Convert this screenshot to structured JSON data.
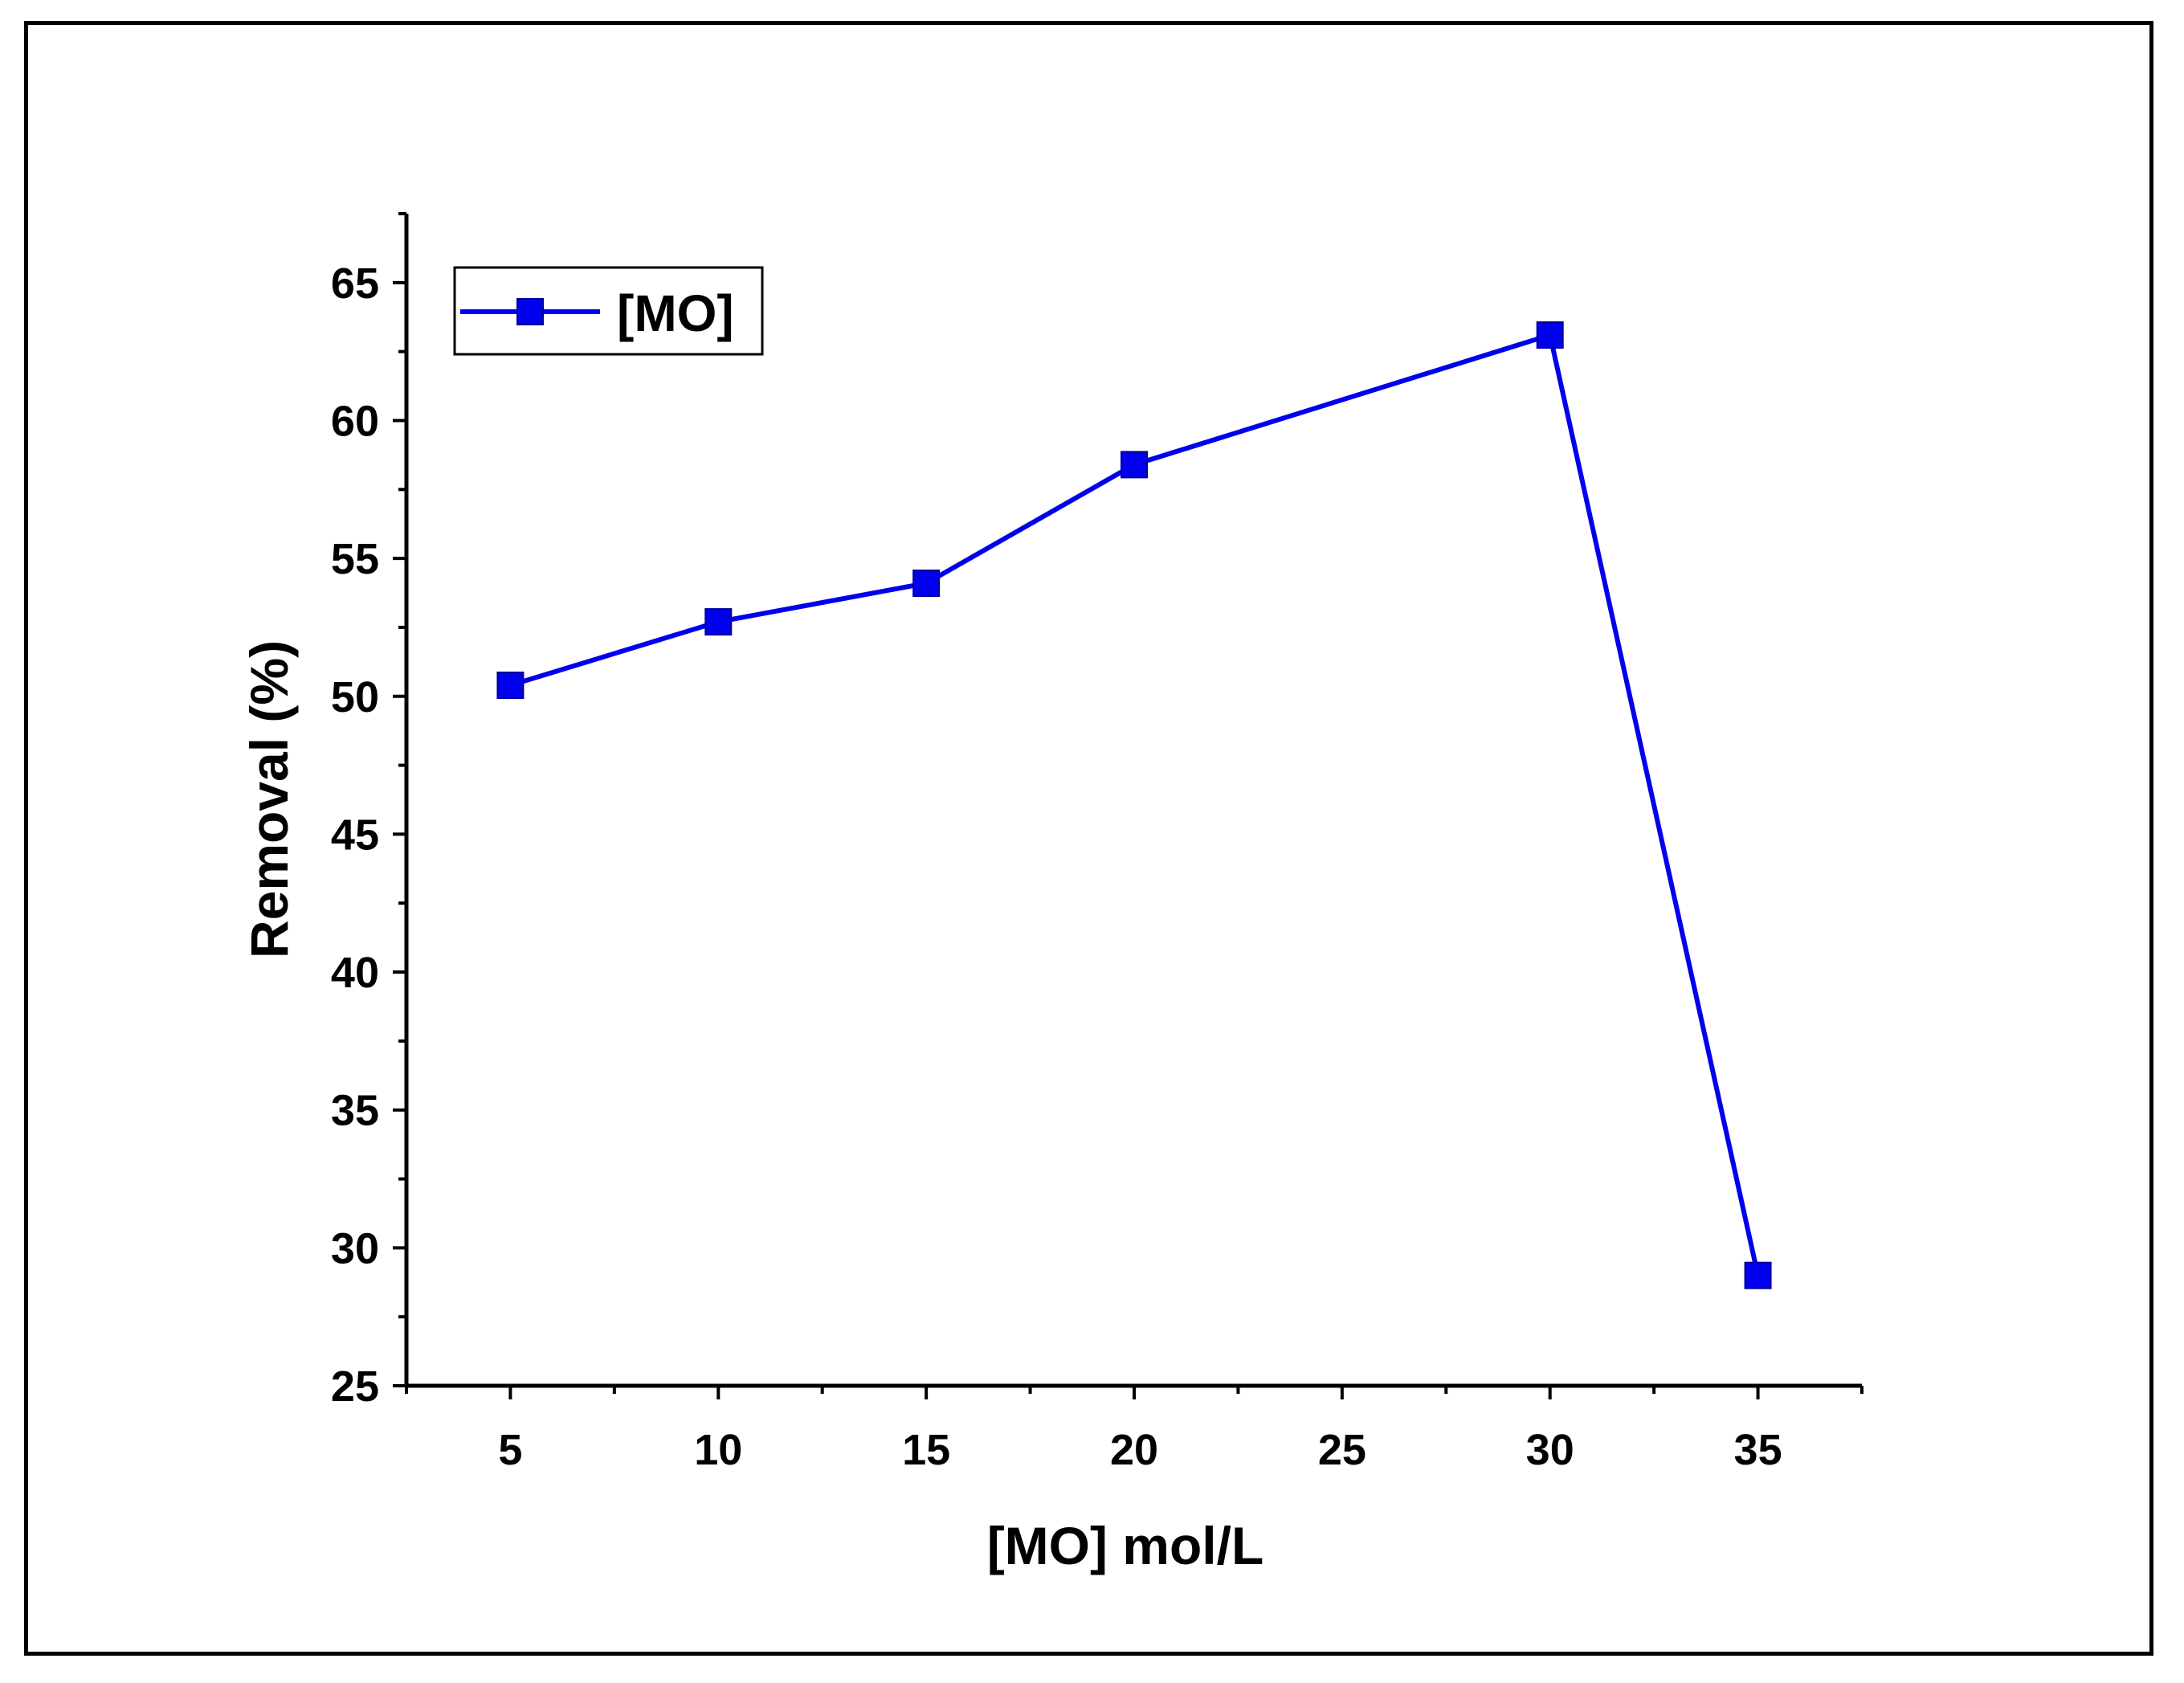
{
  "chart_data": {
    "type": "line",
    "title": "",
    "xlabel": "[MO] mol/L",
    "ylabel": "Removal (%)",
    "x": [
      5,
      10,
      15,
      20,
      30,
      35
    ],
    "series": [
      {
        "name": "[MO]",
        "values": [
          50.4,
          52.7,
          54.1,
          58.4,
          63.1,
          29.0
        ],
        "color": "#0000ee",
        "marker": "square"
      }
    ],
    "xlim": [
      2.5,
      37.5
    ],
    "ylim": [
      25,
      67.5
    ],
    "xticks": [
      5,
      10,
      15,
      20,
      25,
      30,
      35
    ],
    "xtick_labels": [
      "5",
      "10",
      "15",
      "20",
      "25",
      "30",
      "35"
    ],
    "yticks": [
      25,
      30,
      35,
      40,
      45,
      50,
      55,
      60,
      65
    ],
    "ytick_labels": [
      "25",
      "30",
      "35",
      "40",
      "45",
      "50",
      "55",
      "60",
      "65"
    ],
    "grid": false,
    "legend": "top-left"
  }
}
